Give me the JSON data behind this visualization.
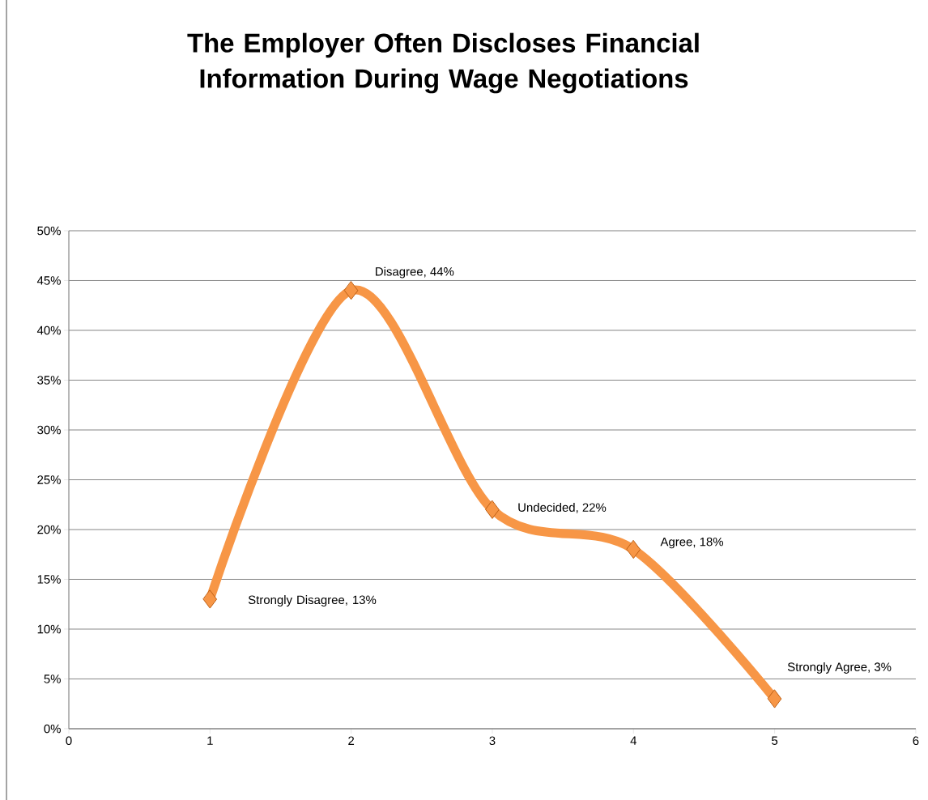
{
  "chart_data": {
    "type": "line",
    "title": "The Employer Often Discloses Financial Information During Wage Negotiations",
    "x": [
      1,
      2,
      3,
      4,
      5
    ],
    "series": [
      {
        "color": "#f79646",
        "values": [
          13,
          44,
          22,
          18,
          3
        ]
      }
    ],
    "value_labels": [
      "Strongly Disagree, 13%",
      "Disagree, 44%",
      "Undecided, 22%",
      "Agree, 18%",
      "Strongly Agree, 3%"
    ],
    "xlim": [
      0,
      6
    ],
    "xticks": [
      0,
      1,
      2,
      3,
      4,
      5,
      6
    ],
    "ylim": [
      0,
      50
    ],
    "yticks": [
      {
        "value": 0,
        "label": "0%"
      },
      {
        "value": 5,
        "label": "5%"
      },
      {
        "value": 10,
        "label": "10%"
      },
      {
        "value": 15,
        "label": "15%"
      },
      {
        "value": 20,
        "label": "20%"
      },
      {
        "value": 25,
        "label": "25%"
      },
      {
        "value": 30,
        "label": "30%"
      },
      {
        "value": 35,
        "label": "35%"
      },
      {
        "value": 40,
        "label": "40%"
      },
      {
        "value": 45,
        "label": "45%"
      },
      {
        "value": 50,
        "label": "50%"
      }
    ],
    "grid": "y",
    "marker": "diamond",
    "line_style": "solid"
  }
}
